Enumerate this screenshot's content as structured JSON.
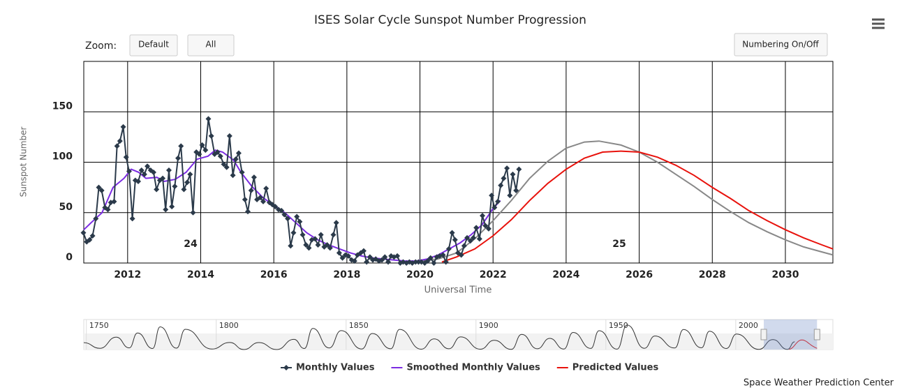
{
  "chart_data": {
    "type": "line",
    "title": "ISES Solar Cycle Sunspot Number Progression",
    "zoom_label": "Zoom:",
    "buttons": [
      "Default",
      "All",
      "Numbering On/Off"
    ],
    "credit": "Space Weather Prediction Center",
    "y_label": "Sunspot Number",
    "x_label": "Universal Time",
    "xlim": [
      2010.8,
      2031.3
    ],
    "xticks": [
      2012,
      2014,
      2016,
      2018,
      2020,
      2022,
      2024,
      2026,
      2028,
      2030
    ],
    "ylim": [
      0,
      200
    ],
    "yticks": [
      0,
      50,
      100,
      150
    ],
    "grid": true,
    "legend": "bottom",
    "annotations": [
      "24",
      "25"
    ],
    "series": [
      {
        "name": "Monthly Values",
        "color": "#2b3a4a",
        "marker": "diamond",
        "x": [
          2010.79,
          2010.88,
          2010.96,
          2011.04,
          2011.13,
          2011.21,
          2011.29,
          2011.38,
          2011.46,
          2011.54,
          2011.63,
          2011.71,
          2011.79,
          2011.88,
          2011.96,
          2012.04,
          2012.13,
          2012.21,
          2012.29,
          2012.38,
          2012.46,
          2012.54,
          2012.63,
          2012.71,
          2012.79,
          2012.88,
          2012.96,
          2013.04,
          2013.13,
          2013.21,
          2013.29,
          2013.38,
          2013.46,
          2013.54,
          2013.63,
          2013.71,
          2013.79,
          2013.88,
          2013.96,
          2014.04,
          2014.13,
          2014.21,
          2014.29,
          2014.38,
          2014.46,
          2014.54,
          2014.63,
          2014.71,
          2014.79,
          2014.88,
          2014.96,
          2015.04,
          2015.13,
          2015.21,
          2015.29,
          2015.38,
          2015.46,
          2015.54,
          2015.63,
          2015.71,
          2015.79,
          2015.88,
          2015.96,
          2016.04,
          2016.13,
          2016.21,
          2016.29,
          2016.38,
          2016.46,
          2016.54,
          2016.63,
          2016.71,
          2016.79,
          2016.88,
          2016.96,
          2017.04,
          2017.13,
          2017.21,
          2017.29,
          2017.38,
          2017.46,
          2017.54,
          2017.63,
          2017.71,
          2017.79,
          2017.88,
          2017.96,
          2018.04,
          2018.13,
          2018.21,
          2018.29,
          2018.38,
          2018.46,
          2018.54,
          2018.63,
          2018.71,
          2018.79,
          2018.88,
          2018.96,
          2019.04,
          2019.13,
          2019.21,
          2019.29,
          2019.38,
          2019.46,
          2019.54,
          2019.63,
          2019.71,
          2019.79,
          2019.88,
          2019.96,
          2020.04,
          2020.13,
          2020.21,
          2020.29,
          2020.38,
          2020.46,
          2020.54,
          2020.63,
          2020.71,
          2020.79,
          2020.88,
          2020.96,
          2021.04,
          2021.13,
          2021.21,
          2021.29,
          2021.38,
          2021.46,
          2021.54,
          2021.63,
          2021.71,
          2021.79,
          2021.88,
          2021.96,
          2022.04,
          2022.13,
          2022.21,
          2022.29,
          2022.38,
          2022.46,
          2022.54,
          2022.63,
          2022.71
        ],
        "values": [
          30,
          21,
          23,
          27,
          44,
          75,
          72,
          55,
          53,
          60,
          61,
          116,
          121,
          135,
          105,
          91,
          44,
          82,
          81,
          92,
          88,
          96,
          92,
          90,
          73,
          82,
          84,
          53,
          92,
          56,
          76,
          104,
          116,
          73,
          80,
          88,
          50,
          110,
          108,
          117,
          112,
          143,
          126,
          108,
          110,
          106,
          98,
          95,
          126,
          87,
          103,
          109,
          90,
          63,
          51,
          72,
          85,
          63,
          65,
          61,
          74,
          60,
          58,
          56,
          53,
          52,
          48,
          44,
          17,
          30,
          46,
          41,
          28,
          18,
          15,
          23,
          24,
          18,
          28,
          16,
          18,
          15,
          28,
          40,
          10,
          5,
          8,
          7,
          3,
          2,
          8,
          10,
          12,
          1,
          6,
          3,
          4,
          2,
          3,
          6,
          1,
          7,
          6,
          7,
          0,
          1,
          0,
          1,
          0,
          1,
          1,
          1,
          0,
          2,
          5,
          0,
          6,
          7,
          8,
          1,
          14,
          30,
          23,
          10,
          8,
          17,
          25,
          22,
          25,
          35,
          24,
          47,
          37,
          34,
          67,
          55,
          61,
          77,
          84,
          94,
          67,
          88,
          72,
          93
        ]
      },
      {
        "name": "Smoothed Monthly Values",
        "color": "#7b2be2",
        "x": [
          2010.8,
          2011.0,
          2011.3,
          2011.6,
          2011.9,
          2012.1,
          2012.3,
          2012.5,
          2012.8,
          2013.0,
          2013.3,
          2013.6,
          2013.9,
          2014.2,
          2014.4,
          2014.6,
          2014.9,
          2015.1,
          2015.4,
          2015.7,
          2016.0,
          2016.3,
          2016.6,
          2016.9,
          2017.2,
          2017.5,
          2017.8,
          2018.1,
          2018.4,
          2018.7,
          2019.0,
          2019.3,
          2019.6,
          2019.9,
          2020.2,
          2020.5,
          2020.8,
          2021.1,
          2021.4,
          2021.7,
          2022.0,
          2022.2
        ],
        "values": [
          33,
          40,
          50,
          75,
          84,
          93,
          90,
          84,
          85,
          81,
          83,
          90,
          103,
          106,
          112,
          110,
          102,
          90,
          76,
          65,
          57,
          50,
          40,
          30,
          23,
          18,
          14,
          10,
          7,
          5,
          4,
          3,
          2,
          2,
          4,
          8,
          14,
          20,
          28,
          38,
          54,
          62
        ]
      },
      {
        "name": "Predicted Values",
        "color": "#e8120c",
        "x": [
          2020.6,
          2021.0,
          2021.5,
          2022.0,
          2022.5,
          2023.0,
          2023.5,
          2024.0,
          2024.5,
          2025.0,
          2025.5,
          2026.0,
          2026.5,
          2027.0,
          2027.5,
          2028.0,
          2028.5,
          2029.0,
          2029.5,
          2030.0,
          2030.5,
          2031.0,
          2031.3
        ],
        "values": [
          1,
          6,
          14,
          27,
          43,
          62,
          79,
          93,
          104,
          110,
          111,
          110,
          105,
          97,
          87,
          75,
          64,
          52,
          42,
          33,
          25,
          18,
          14
        ]
      },
      {
        "color": "#888888",
        "x": [
          2019.9,
          2020.5,
          2021.0,
          2021.5,
          2022.0,
          2022.5,
          2023.0,
          2023.5,
          2024.0,
          2024.5,
          2024.9,
          2025.5,
          2026.0,
          2026.5,
          2027.0,
          2027.5,
          2028.0,
          2028.5,
          2029.0,
          2029.5,
          2030.0,
          2030.5,
          2031.0,
          2031.3
        ],
        "values": [
          2,
          4,
          10,
          24,
          42,
          62,
          84,
          101,
          114,
          120,
          121,
          117,
          110,
          100,
          88,
          76,
          63,
          51,
          40,
          31,
          23,
          16,
          11,
          8
        ]
      }
    ],
    "navigator": {
      "xlim": [
        1749,
        2037.4
      ],
      "xticks": [
        1750,
        1800,
        1850,
        1900,
        1950,
        2000
      ],
      "ylim": [
        0,
        300
      ],
      "color": "#333333",
      "x": [
        1749,
        1755.2,
        1761.5,
        1766.5,
        1769.7,
        1775.5,
        1778.4,
        1784.7,
        1788.1,
        1798.3,
        1805.2,
        1810.6,
        1816.4,
        1823.3,
        1829.9,
        1833.9,
        1837.2,
        1843.5,
        1848.1,
        1856.0,
        1860.1,
        1867.2,
        1870.6,
        1878.9,
        1883.9,
        1889.6,
        1894.1,
        1901.7,
        1907.0,
        1913.6,
        1917.6,
        1923.6,
        1928.4,
        1933.8,
        1937.4,
        1944.2,
        1947.4,
        1954.3,
        1958.2,
        1964.8,
        1968.9,
        1976.5,
        1979.9,
        1986.8,
        1989.9,
        1996.4,
        2000.3,
        2008.9,
        2014.3,
        2019.9,
        2022.7
      ],
      "values": [
        80,
        14,
        144,
        19,
        193,
        12,
        264,
        16,
        235,
        6,
        82,
        0,
        81,
        0,
        119,
        12,
        245,
        18,
        220,
        6,
        186,
        9,
        234,
        4,
        124,
        9,
        147,
        4,
        107,
        2,
        176,
        9,
        130,
        6,
        199,
        13,
        219,
        5,
        285,
        14,
        157,
        18,
        233,
        20,
        213,
        12,
        180,
        2,
        116,
        2,
        90
      ]
    }
  }
}
